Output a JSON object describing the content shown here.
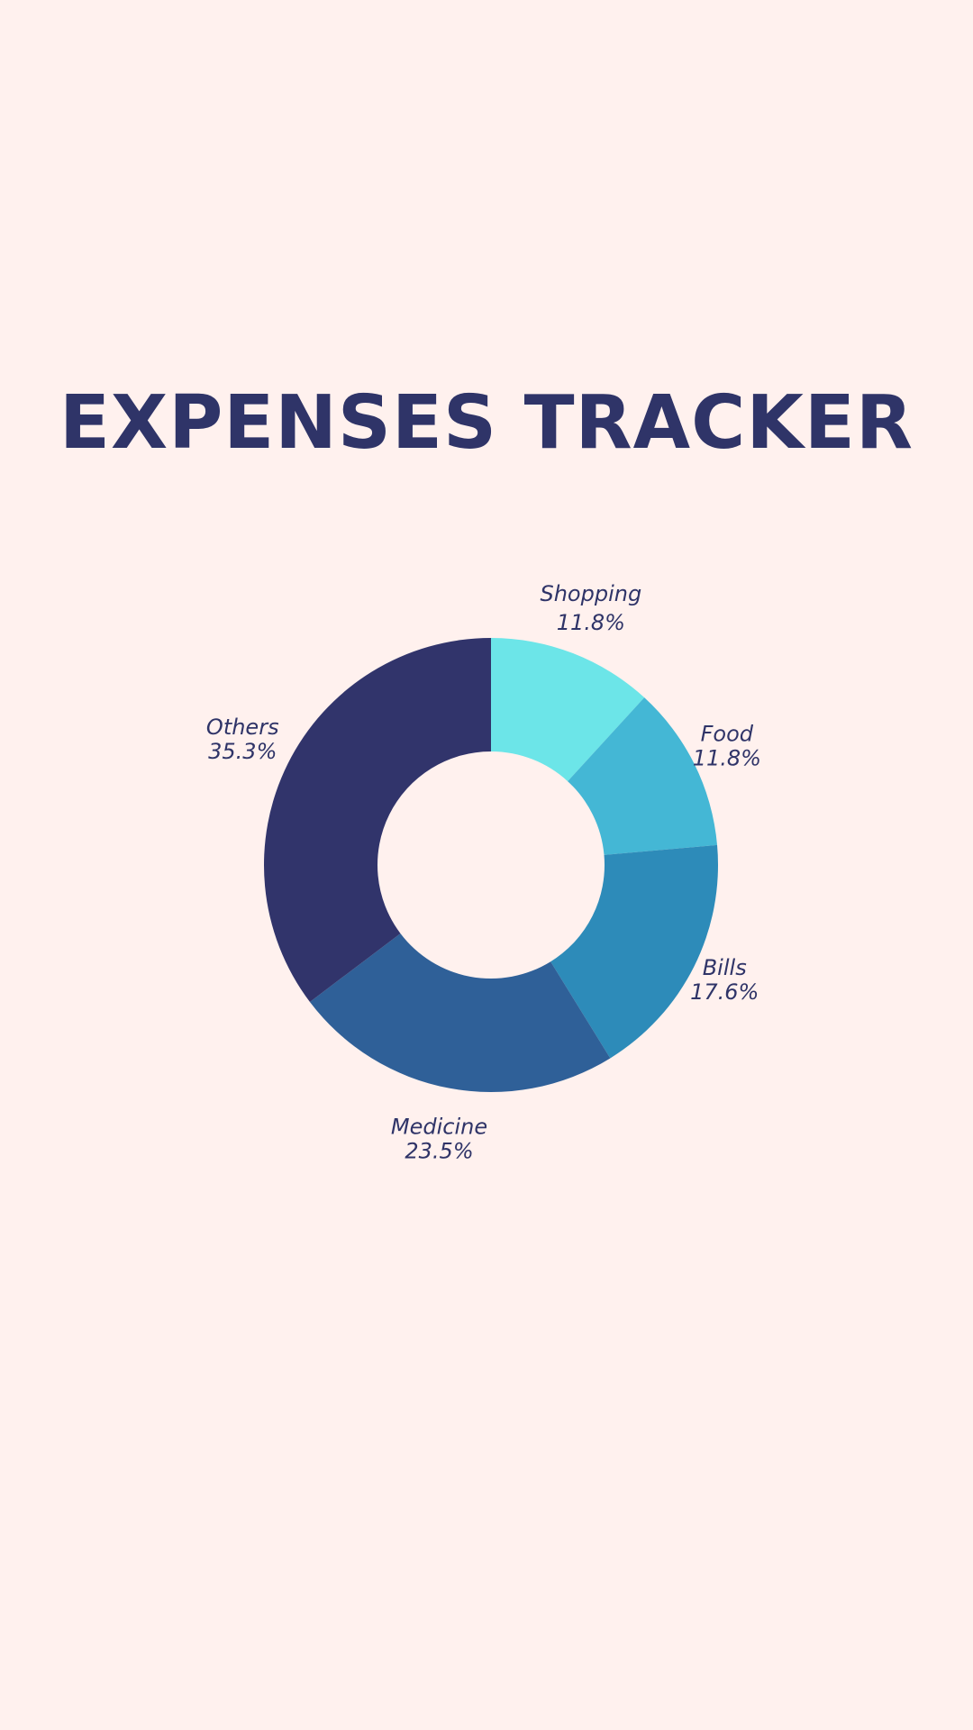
{
  "title": "EXPENSES TRACKER",
  "colors": {
    "background": "#fff1ee",
    "text": "#2f3468"
  },
  "chart_data": {
    "type": "pie",
    "subtype": "donut",
    "title": "",
    "start_angle_deg": 0,
    "direction": "clockwise",
    "slices": [
      {
        "label": "Shopping",
        "percent_label": "11.8%",
        "value": 11.8,
        "color": "#6ce5e8"
      },
      {
        "label": "Food",
        "percent_label": "11.8%",
        "value": 11.8,
        "color": "#44b7d5"
      },
      {
        "label": "Bills",
        "percent_label": "17.6%",
        "value": 17.6,
        "color": "#2d8bb9"
      },
      {
        "label": "Medicine",
        "percent_label": "23.5%",
        "value": 23.5,
        "color": "#2f6098"
      },
      {
        "label": "Others",
        "percent_label": "35.3%",
        "value": 35.3,
        "color": "#31346b"
      }
    ],
    "legend": "none"
  }
}
